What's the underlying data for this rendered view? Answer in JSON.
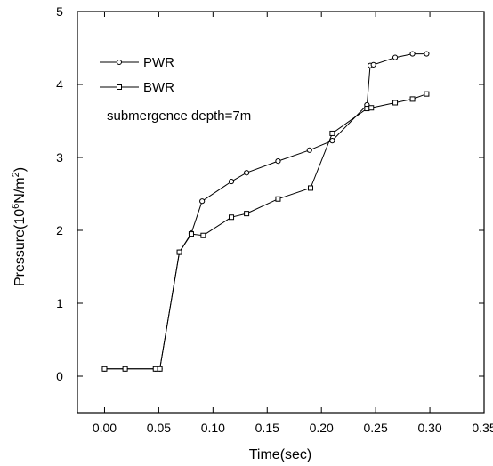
{
  "chart_data": {
    "type": "line",
    "title": "",
    "xlabel": "Time(sec)",
    "ylabel_parts": {
      "prefix": "Pressure(10",
      "sup1": "6",
      "mid": "N/m",
      "sup2": "2",
      "suffix": ")"
    },
    "xlim": [
      -0.025,
      0.35
    ],
    "ylim": [
      -0.5,
      5
    ],
    "xticks": [
      "0.00",
      "0.05",
      "0.10",
      "0.15",
      "0.20",
      "0.25",
      "0.30",
      "0.35"
    ],
    "yticks": [
      "0",
      "1",
      "2",
      "3",
      "4",
      "5"
    ],
    "xtick_values": [
      0.0,
      0.05,
      0.1,
      0.15,
      0.2,
      0.25,
      0.3,
      0.35
    ],
    "ytick_values": [
      0,
      1,
      2,
      3,
      4,
      5
    ],
    "grid": false,
    "legend_position": "top-left",
    "annotation": "submergence depth=7m",
    "series": [
      {
        "name": "PWR",
        "marker": "circle",
        "x": [
          0.0,
          0.019,
          0.047,
          0.051,
          0.069,
          0.08,
          0.09,
          0.117,
          0.131,
          0.16,
          0.189,
          0.21,
          0.242,
          0.245,
          0.248,
          0.268,
          0.284,
          0.297
        ],
        "y": [
          0.1,
          0.1,
          0.1,
          0.1,
          1.7,
          1.96,
          2.4,
          2.67,
          2.79,
          2.95,
          3.1,
          3.23,
          3.72,
          4.26,
          4.27,
          4.37,
          4.42,
          4.42
        ]
      },
      {
        "name": "BWR",
        "marker": "square",
        "x": [
          0.0,
          0.019,
          0.047,
          0.051,
          0.069,
          0.08,
          0.091,
          0.117,
          0.131,
          0.16,
          0.19,
          0.21,
          0.242,
          0.246,
          0.268,
          0.284,
          0.297
        ],
        "y": [
          0.1,
          0.1,
          0.1,
          0.1,
          1.7,
          1.95,
          1.93,
          2.18,
          2.23,
          2.43,
          2.58,
          3.33,
          3.67,
          3.68,
          3.75,
          3.8,
          3.87
        ]
      }
    ]
  }
}
